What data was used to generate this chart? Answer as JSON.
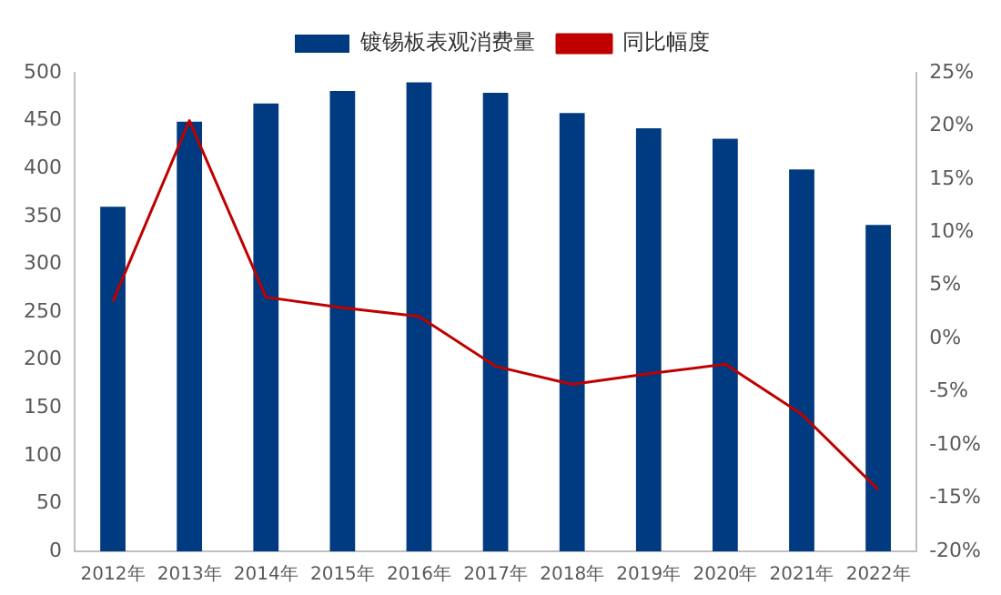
{
  "chart_data": {
    "type": "bar",
    "categories": [
      "2012年",
      "2013年",
      "2014年",
      "2015年",
      "2016年",
      "2017年",
      "2018年",
      "2019年",
      "2020年",
      "2021年",
      "2022年"
    ],
    "series": [
      {
        "name": "镀锡板表观消费量",
        "color": "#003a80",
        "values": [
          360,
          449,
          468,
          481,
          490,
          479,
          458,
          442,
          431,
          399,
          341
        ]
      },
      {
        "name": "同比幅度",
        "type": "line",
        "axis": "y2",
        "color": "#c00000",
        "marker": "none",
        "values": [
          3.5,
          20.5,
          3.9,
          2.9,
          2.1,
          -2.6,
          -4.3,
          -3.3,
          -2.4,
          -7.1,
          -14.2
        ]
      }
    ],
    "ylim": [
      0,
      500
    ],
    "yticks": [
      0,
      50,
      100,
      150,
      200,
      250,
      300,
      350,
      400,
      450,
      500
    ],
    "y2lim": [
      -20,
      25
    ],
    "y2ticks": [
      {
        "value": -20,
        "label": "-20%"
      },
      {
        "value": -15,
        "label": "-15%"
      },
      {
        "value": -10,
        "label": "-10%"
      },
      {
        "value": -5,
        "label": "-5%"
      },
      {
        "value": 0,
        "label": "0%"
      },
      {
        "value": 5,
        "label": "5%"
      },
      {
        "value": 10,
        "label": "10%"
      },
      {
        "value": 15,
        "label": "15%"
      },
      {
        "value": 20,
        "label": "20%"
      },
      {
        "value": 25,
        "label": "25%"
      }
    ],
    "grid": false,
    "legend": "top"
  }
}
